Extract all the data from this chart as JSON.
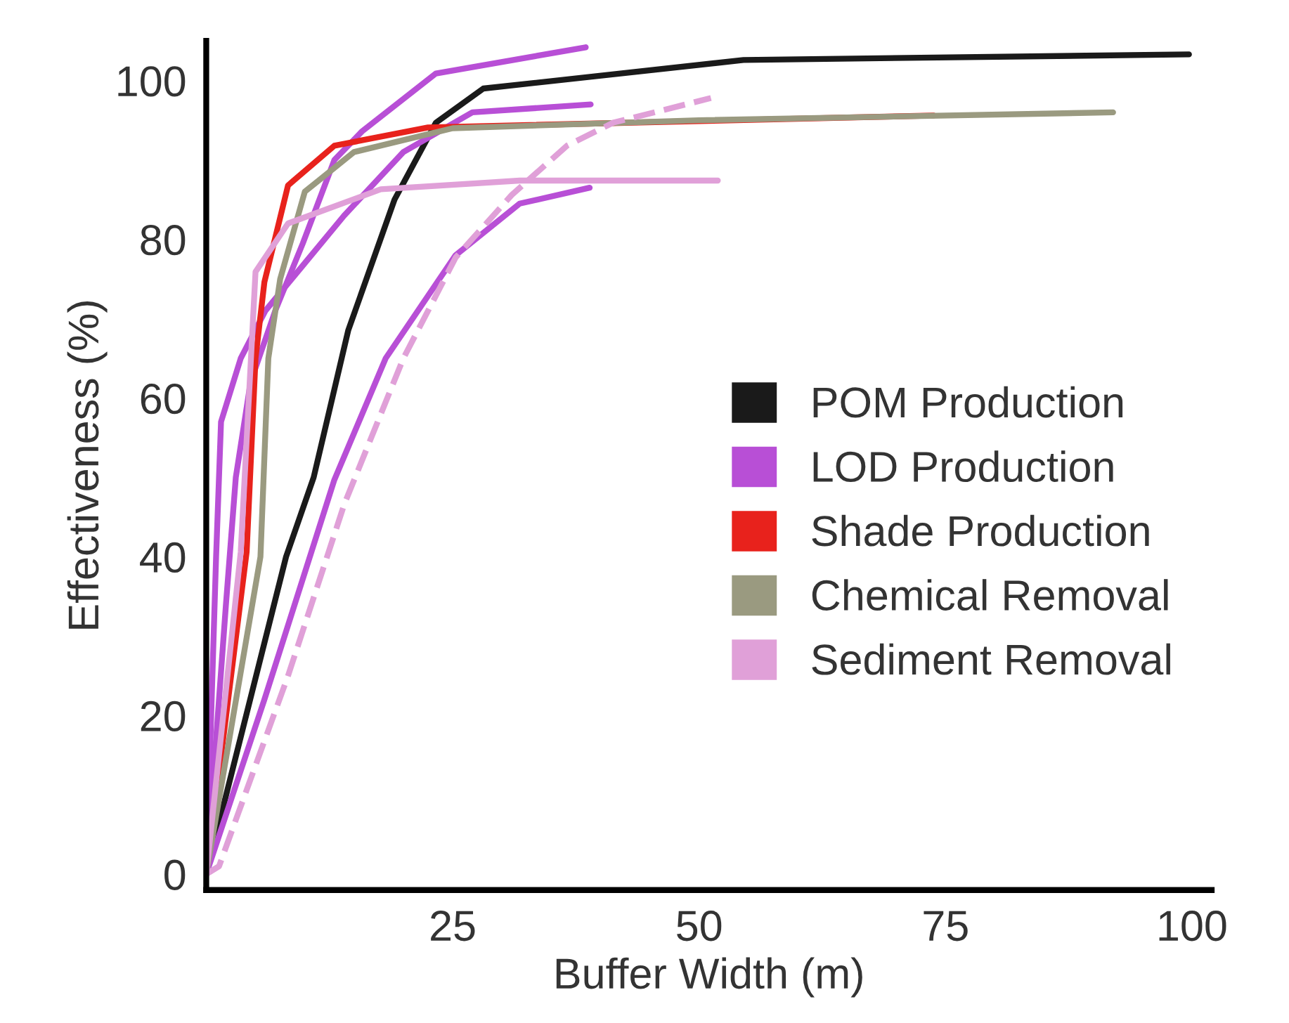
{
  "chart_data": {
    "type": "line",
    "xlabel": "Buffer Width (m)",
    "ylabel": "Effectiveness (%)",
    "xlim": [
      0,
      102
    ],
    "ylim": [
      -2,
      105
    ],
    "xticks": [
      25,
      50,
      75,
      100
    ],
    "yticks": [
      0,
      20,
      40,
      60,
      80,
      100
    ],
    "grid": false,
    "legend": "right",
    "marker": "none",
    "line_style": "solid",
    "series": [
      {
        "name": "POM Production",
        "color": "#1a1a1a",
        "x": [
          0,
          8.1,
          10.9,
          14.4,
          19.1,
          23.3,
          28.1,
          54.5,
          99.7
        ],
        "values": [
          0,
          40,
          50,
          68.5,
          85,
          94.7,
          99,
          102.6,
          103.3
        ]
      },
      {
        "name": "LOD Production",
        "color": "#b84fd6",
        "x": [
          0,
          1,
          1.5,
          3.5,
          6,
          10,
          14,
          20,
          27,
          39
        ],
        "values": [
          0,
          40,
          57,
          65,
          71,
          77,
          83,
          91,
          96,
          97
        ]
      },
      {
        "color": "#b84fd6",
        "x": [
          0,
          2,
          3,
          4.5,
          7,
          9.8,
          13,
          15.8,
          23.3,
          38.5
        ],
        "values": [
          0,
          34,
          50,
          62,
          71,
          79.5,
          90,
          93.6,
          100.9,
          104.2
        ]
      },
      {
        "color": "#b84fd6",
        "x": [
          0,
          5.9,
          13,
          18.2,
          25.3,
          31.8,
          38.9
        ],
        "values": [
          0,
          22,
          49.7,
          65,
          78,
          84.5,
          86.5
        ]
      },
      {
        "name": "Shade Production",
        "color": "#e8221c",
        "x": [
          0,
          4.1,
          5,
          5.9,
          8.3,
          13,
          22.5,
          73.8
        ],
        "values": [
          0,
          40.6,
          65,
          74.6,
          86.8,
          91.8,
          94.1,
          95.6
        ]
      },
      {
        "name": "Chemical Removal",
        "color": "#9a9a80",
        "x": [
          0,
          5.5,
          6.3,
          7.5,
          10,
          15,
          25,
          50,
          92
        ],
        "values": [
          0,
          40,
          65,
          75,
          86,
          91,
          94,
          95,
          96
        ]
      },
      {
        "name": "Sediment Removal",
        "color": "#e0a0d8",
        "x": [
          0,
          3.5,
          5,
          8.3,
          17.7,
          31.8,
          51.9
        ],
        "values": [
          0,
          40.6,
          75.9,
          82,
          86.3,
          87.4,
          87.4
        ]
      },
      {
        "color": "#e0a0d8",
        "line_style": "dashed",
        "x": [
          0,
          1.3,
          8.3,
          14,
          20,
          25.3,
          31,
          36.6,
          41.3,
          51.2
        ],
        "values": [
          0,
          1,
          25,
          46.6,
          65,
          77.7,
          85.6,
          91.8,
          94.7,
          97.8
        ]
      }
    ]
  }
}
